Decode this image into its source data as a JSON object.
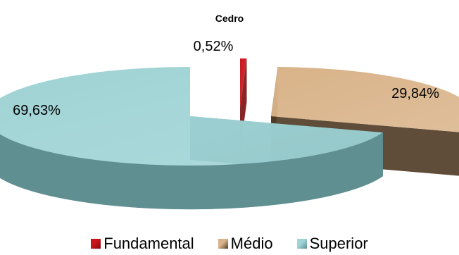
{
  "chart_data": {
    "type": "pie",
    "title": "",
    "subtitle": "Cedro",
    "labels": [
      "Fundamental",
      "Médio",
      "Superior"
    ],
    "values": [
      0.52,
      29.84,
      69.63
    ],
    "value_labels": [
      "0,52%",
      "29,84%",
      "69,63%"
    ],
    "colors": [
      "#c8161c",
      "#d9b389",
      "#9fd3d5"
    ],
    "side_colors": [
      "#7a0d10",
      "#4e3a25",
      "#5f8f91"
    ],
    "legend_position": "bottom",
    "style": "3d-exploded"
  }
}
